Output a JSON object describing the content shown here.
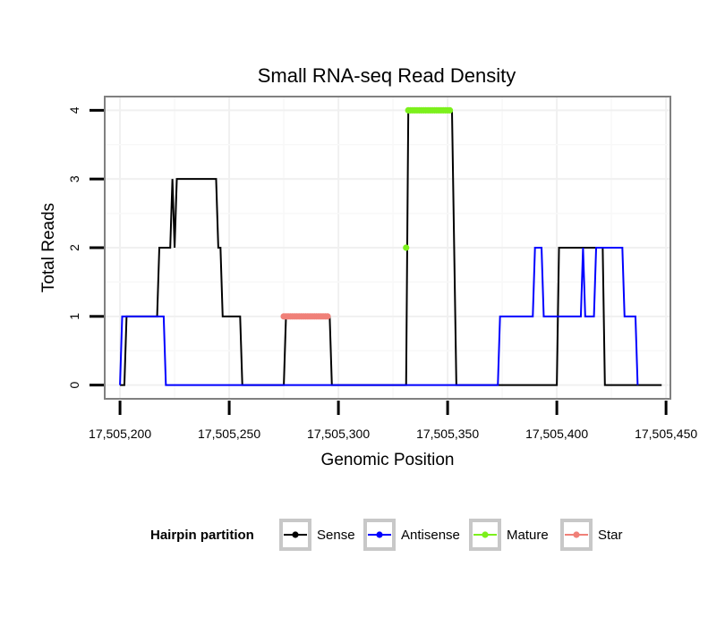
{
  "chart_data": {
    "type": "line",
    "title": "Small RNA-seq Read Density",
    "xlabel": "Genomic Position",
    "ylabel": "Total Reads",
    "xlim": [
      17505193,
      17505452
    ],
    "ylim": [
      -0.2,
      4.2
    ],
    "x_ticks": [
      17505200,
      17505250,
      17505300,
      17505350,
      17505400,
      17505450
    ],
    "x_tick_labels": [
      "17,505,200",
      "17,505,250",
      "17,505,300",
      "17,505,350",
      "17,505,400",
      "17,505,450"
    ],
    "y_ticks": [
      0,
      1,
      2,
      3,
      4
    ],
    "y_tick_labels": [
      "0",
      "1",
      "2",
      "3",
      "4"
    ],
    "grid": true,
    "legend_title": "Hairpin partition",
    "legend_position": "bottom",
    "series": [
      {
        "name": "Sense",
        "color": "#000000",
        "style": "line",
        "x": [
          17505200,
          17505202,
          17505203,
          17505217,
          17505218,
          17505223,
          17505224,
          17505225,
          17505226,
          17505244,
          17505245,
          17505246,
          17505247,
          17505255,
          17505256,
          17505275,
          17505276,
          17505296,
          17505297,
          17505331,
          17505332,
          17505352,
          17505354,
          17505400,
          17505401,
          17505421,
          17505422,
          17505448
        ],
        "y": [
          0,
          0,
          1,
          1,
          2,
          2,
          3,
          2,
          3,
          3,
          2,
          2,
          1,
          1,
          0,
          0,
          1,
          1,
          0,
          0,
          4,
          4,
          0,
          0,
          2,
          2,
          0,
          0
        ]
      },
      {
        "name": "Antisense",
        "color": "#0000ff",
        "style": "line",
        "x": [
          17505200,
          17505201,
          17505220,
          17505221,
          17505373,
          17505374,
          17505389,
          17505390,
          17505393,
          17505394,
          17505411,
          17505412,
          17505413,
          17505417,
          17505418,
          17505419,
          17505430,
          17505431,
          17505436,
          17505437
        ],
        "y": [
          0,
          1,
          1,
          0,
          0,
          1,
          1,
          2,
          2,
          1,
          1,
          2,
          1,
          1,
          2,
          2,
          2,
          1,
          1,
          0
        ]
      },
      {
        "name": "Mature",
        "color": "#7cf01c",
        "style": "points",
        "x": [
          17505331,
          17505332,
          17505333,
          17505334,
          17505335,
          17505336,
          17505337,
          17505338,
          17505339,
          17505340,
          17505341,
          17505342,
          17505343,
          17505344,
          17505345,
          17505346,
          17505347,
          17505348,
          17505349,
          17505350,
          17505351
        ],
        "y": [
          2,
          4,
          4,
          4,
          4,
          4,
          4,
          4,
          4,
          4,
          4,
          4,
          4,
          4,
          4,
          4,
          4,
          4,
          4,
          4,
          4
        ]
      },
      {
        "name": "Star",
        "color": "#f08078",
        "style": "points",
        "x": [
          17505275,
          17505276,
          17505277,
          17505278,
          17505279,
          17505280,
          17505281,
          17505282,
          17505283,
          17505284,
          17505285,
          17505286,
          17505287,
          17505288,
          17505289,
          17505290,
          17505291,
          17505292,
          17505293,
          17505294,
          17505295
        ],
        "y": [
          1,
          1,
          1,
          1,
          1,
          1,
          1,
          1,
          1,
          1,
          1,
          1,
          1,
          1,
          1,
          1,
          1,
          1,
          1,
          1,
          1
        ]
      }
    ]
  }
}
